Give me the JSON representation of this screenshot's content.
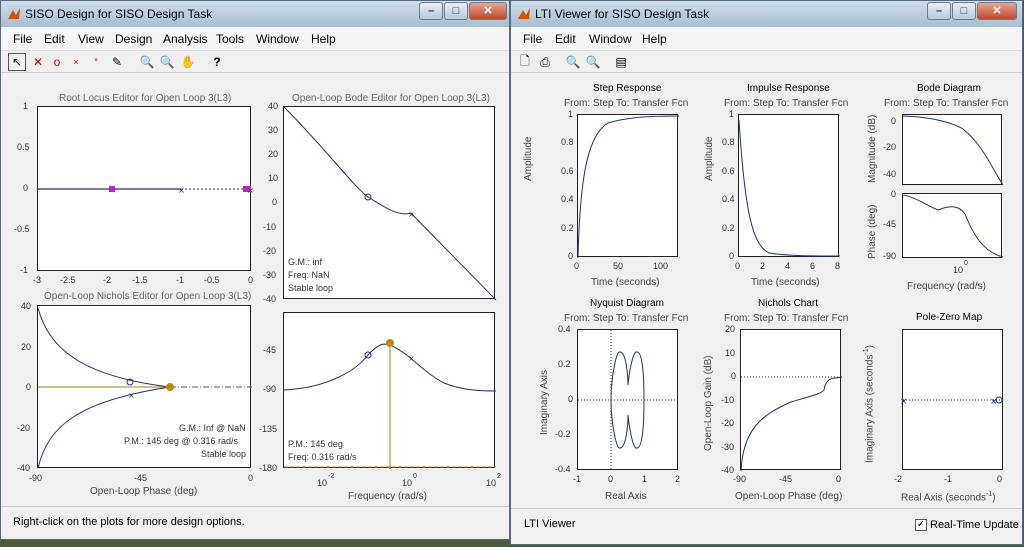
{
  "siso": {
    "title": "SISO Design for SISO Design Task",
    "menu": [
      "File",
      "Edit",
      "View",
      "Design",
      "Analysis",
      "Tools",
      "Window",
      "Help"
    ],
    "rootlocus": {
      "title": "Root Locus Editor for Open Loop 3(L3)",
      "yt": [
        "1",
        "0.5",
        "0",
        "-0.5",
        "-1"
      ],
      "xt": [
        "-3",
        "-2.5",
        "-2",
        "-1.5",
        "-1",
        "-0.5",
        "0"
      ]
    },
    "bode": {
      "title": "Open-Loop Bode Editor for Open Loop 3(L3)",
      "yt1": [
        "40",
        "30",
        "20",
        "10",
        "0",
        "-10",
        "-20",
        "-30",
        "-40"
      ],
      "gm": "G.M.: inf",
      "freq": "Freq: NaN",
      "stable": "Stable loop",
      "yt2": [
        "-45",
        "-90",
        "-135",
        "-180"
      ],
      "pm": "P.M.: 145 deg",
      "pmfreq": "Freq: 0.316 rad/s",
      "xt": [
        "10",
        "-2",
        "10",
        "0",
        "10",
        "2"
      ],
      "xlabel": "Frequency (rad/s)"
    },
    "nichols": {
      "title": "Open-Loop Nichols Editor for Open Loop 3(L3)",
      "yt": [
        "40",
        "20",
        "0",
        "-20",
        "-40"
      ],
      "gm": "G.M.: Inf @ NaN",
      "pm": "P.M.: 145 deg @ 0.316 rad/s",
      "stable": "Stable loop",
      "xt": [
        "-90",
        "-45",
        "0"
      ],
      "xlabel": "Open-Loop Phase (deg)"
    },
    "status": "Right-click on the plots for more design options."
  },
  "lti": {
    "title": "LTI Viewer for SISO Design Task",
    "menu": [
      "File",
      "Edit",
      "Window",
      "Help"
    ],
    "from": "From: Step  To: Transfer Fcn",
    "step": {
      "title": "Step Response",
      "ylabel": "Amplitude",
      "xlabel": "Time (seconds)",
      "yt": [
        "1",
        "0.8",
        "0.6",
        "0.4",
        "0.2",
        "0"
      ],
      "xt": [
        "0",
        "50",
        "100"
      ]
    },
    "impulse": {
      "title": "Impulse Response",
      "ylabel": "Amplitude",
      "xlabel": "Time (seconds)",
      "yt": [
        "1",
        "0.8",
        "0.6",
        "0.4",
        "0.2",
        "0"
      ],
      "xt": [
        "0",
        "2",
        "4",
        "6",
        "8"
      ]
    },
    "bodeplot": {
      "title": "Bode Diagram",
      "ylabel1": "Magnitude (dB)",
      "ylabel2": "Phase (deg)",
      "yt1": [
        "0",
        "-20",
        "-40"
      ],
      "yt2": [
        "0",
        "-45",
        "-90"
      ],
      "xt": "10",
      "xsup": "0",
      "xlabel": "Frequency  (rad/s)"
    },
    "nyquist": {
      "title": "Nyquist Diagram",
      "ylabel": "Imaginary Axis",
      "xlabel": "Real Axis",
      "yt": [
        "0.4",
        "0.2",
        "0",
        "-0.2",
        "-0.4"
      ],
      "xt": [
        "-1",
        "0",
        "1",
        "2"
      ]
    },
    "nicholsch": {
      "title": "Nichols Chart",
      "ylabel": "Open-Loop Gain (dB)",
      "xlabel": "Open-Loop Phase (deg)",
      "yt": [
        "20",
        "10",
        "0",
        "-10",
        "-20",
        "-30",
        "-40"
      ],
      "xt": [
        "-90",
        "-45",
        "0"
      ]
    },
    "pz": {
      "title": "Pole-Zero Map",
      "ylabel": "Imaginary Axis (seconds",
      "ysup": "-1",
      "ysuf": ")",
      "xlabel": "Real Axis (seconds",
      "xsup": "-1",
      "xsuf": ")",
      "xt": [
        "-2",
        "-1",
        "0"
      ]
    },
    "status": "LTI Viewer",
    "rt": "Real-Time Update"
  }
}
